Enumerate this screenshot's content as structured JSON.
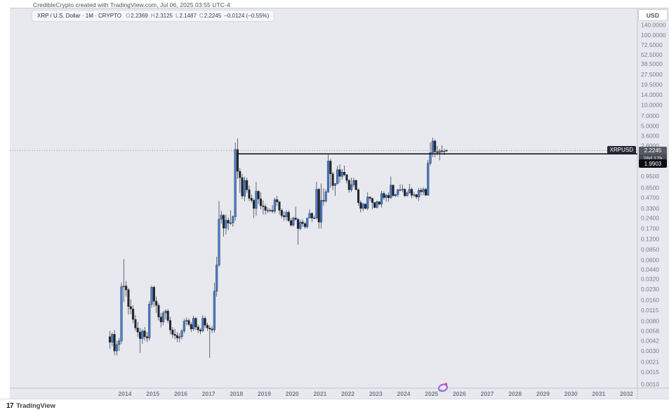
{
  "header": {
    "attribution": "CredibleCrypto created with TradingView.com, Jul 06, 2025 03:55 UTC-4"
  },
  "symbol_bar": {
    "title": "XRP / U.S. Dollar · 1M · CRYPTO",
    "ohlc": [
      {
        "k": "O",
        "v": "2.2369"
      },
      {
        "k": "H",
        "v": "2.3125"
      },
      {
        "k": "L",
        "v": "2.1487"
      },
      {
        "k": "C",
        "v": "2.2245"
      }
    ],
    "change": "−0.0124 (−0.55%)"
  },
  "axis": {
    "currency_button": "USD"
  },
  "badges": {
    "symbol_label": "XRPUSD",
    "last_price": "2.2245",
    "countdown": "26d 17h",
    "ray_price": "1.9903"
  },
  "footer": {
    "logo_mark": "17",
    "brand": "TradingView"
  },
  "colors": {
    "up_candle": "#4a80d1",
    "down_candle": "#22252e",
    "wick": "#42454f",
    "ray_line": "#0a0a0a",
    "last_price_line": "#8c8f99",
    "axis_text": "#7a7d87",
    "background": "#e7e9ef"
  },
  "chart_data": {
    "type": "candlestick",
    "symbol": "XRPUSD",
    "interval": "1M",
    "scale": "logarithmic",
    "grid": false,
    "title": "XRP / U.S. Dollar monthly candles",
    "last_price": 2.2245,
    "price_axis_ticks": [
      "140.0000",
      "100.0000",
      "72.5000",
      "52.5000",
      "38.5000",
      "27.5000",
      "19.5000",
      "14.0000",
      "10.0000",
      "7.0000",
      "5.0000",
      "3.6000",
      "2.6000",
      "1.3500",
      "0.9500",
      "0.6500",
      "0.4700",
      "0.3300",
      "0.2400",
      "0.1700",
      "0.1200",
      "0.0850",
      "0.0600",
      "0.0440",
      "0.0320",
      "0.0230",
      "0.0160",
      "0.0115",
      "0.0080",
      "0.0058",
      "0.0042",
      "0.0030",
      "0.0021",
      "0.0015",
      "0.0010"
    ],
    "time_axis_ticks": [
      2014,
      2015,
      2016,
      2017,
      2018,
      2019,
      2020,
      2021,
      2022,
      2023,
      2024,
      2025,
      2026,
      2027,
      2028,
      2029,
      2030,
      2031,
      2032
    ],
    "horizontal_ray": {
      "price": 1.9903,
      "start": "2018-01"
    },
    "candles": [
      [
        "2013-06",
        0.0048,
        0.0058,
        0.0032,
        0.004
      ],
      [
        "2013-07",
        0.004,
        0.0055,
        0.0035,
        0.0052
      ],
      [
        "2013-08",
        0.0052,
        0.006,
        0.0026,
        0.003
      ],
      [
        "2013-09",
        0.003,
        0.0042,
        0.0026,
        0.0037
      ],
      [
        "2013-10",
        0.0037,
        0.0046,
        0.003,
        0.0042
      ],
      [
        "2013-11",
        0.0042,
        0.0285,
        0.0038,
        0.025
      ],
      [
        "2013-12",
        0.025,
        0.062,
        0.015,
        0.0255
      ],
      [
        "2014-01",
        0.0255,
        0.03,
        0.018,
        0.0225
      ],
      [
        "2014-02",
        0.0225,
        0.024,
        0.01,
        0.013
      ],
      [
        "2014-03",
        0.013,
        0.0165,
        0.01,
        0.012
      ],
      [
        "2014-04",
        0.012,
        0.0135,
        0.0075,
        0.0085
      ],
      [
        "2014-05",
        0.0085,
        0.0098,
        0.0058,
        0.0064
      ],
      [
        "2014-06",
        0.0064,
        0.0078,
        0.0048,
        0.0056
      ],
      [
        "2014-07",
        0.0056,
        0.0064,
        0.0028,
        0.0045
      ],
      [
        "2014-08",
        0.0045,
        0.0062,
        0.0038,
        0.0058
      ],
      [
        "2014-09",
        0.0058,
        0.0066,
        0.0042,
        0.0048
      ],
      [
        "2014-10",
        0.0048,
        0.0056,
        0.004,
        0.0046
      ],
      [
        "2014-11",
        0.0046,
        0.0155,
        0.0042,
        0.014
      ],
      [
        "2014-12",
        0.014,
        0.026,
        0.0125,
        0.0245
      ],
      [
        "2015-01",
        0.0245,
        0.0258,
        0.0128,
        0.0155
      ],
      [
        "2015-02",
        0.0155,
        0.018,
        0.0105,
        0.0135
      ],
      [
        "2015-03",
        0.0135,
        0.0145,
        0.0082,
        0.0092
      ],
      [
        "2015-04",
        0.0092,
        0.0105,
        0.0065,
        0.0078
      ],
      [
        "2015-05",
        0.0078,
        0.0112,
        0.007,
        0.0105
      ],
      [
        "2015-06",
        0.0105,
        0.0118,
        0.0085,
        0.0112
      ],
      [
        "2015-07",
        0.0112,
        0.012,
        0.0075,
        0.0082
      ],
      [
        "2015-08",
        0.0082,
        0.0092,
        0.0052,
        0.006
      ],
      [
        "2015-09",
        0.006,
        0.0066,
        0.0046,
        0.0052
      ],
      [
        "2015-10",
        0.0052,
        0.0062,
        0.0044,
        0.005
      ],
      [
        "2015-11",
        0.005,
        0.0056,
        0.004,
        0.0046
      ],
      [
        "2015-12",
        0.0046,
        0.0054,
        0.004,
        0.0048
      ],
      [
        "2016-01",
        0.0048,
        0.0062,
        0.0044,
        0.0058
      ],
      [
        "2016-02",
        0.0058,
        0.0086,
        0.0054,
        0.008
      ],
      [
        "2016-03",
        0.008,
        0.009,
        0.007,
        0.0082
      ],
      [
        "2016-04",
        0.0082,
        0.0088,
        0.0068,
        0.0072
      ],
      [
        "2016-05",
        0.0072,
        0.0078,
        0.0056,
        0.0062
      ],
      [
        "2016-06",
        0.0062,
        0.0096,
        0.0058,
        0.0088
      ],
      [
        "2016-07",
        0.0088,
        0.0092,
        0.006,
        0.0066
      ],
      [
        "2016-08",
        0.0066,
        0.0072,
        0.0054,
        0.006
      ],
      [
        "2016-09",
        0.006,
        0.0064,
        0.0052,
        0.0058
      ],
      [
        "2016-10",
        0.0058,
        0.0098,
        0.0056,
        0.0088
      ],
      [
        "2016-11",
        0.0088,
        0.0094,
        0.0064,
        0.007
      ],
      [
        "2016-12",
        0.007,
        0.0076,
        0.0058,
        0.0064
      ],
      [
        "2017-01",
        0.0064,
        0.007,
        0.0024,
        0.0062
      ],
      [
        "2017-02",
        0.0062,
        0.0068,
        0.0054,
        0.006
      ],
      [
        "2017-03",
        0.006,
        0.0285,
        0.0055,
        0.0215
      ],
      [
        "2017-04",
        0.0215,
        0.067,
        0.018,
        0.051
      ],
      [
        "2017-05",
        0.051,
        0.42,
        0.048,
        0.232
      ],
      [
        "2017-06",
        0.232,
        0.305,
        0.2,
        0.263
      ],
      [
        "2017-07",
        0.263,
        0.272,
        0.13,
        0.172
      ],
      [
        "2017-08",
        0.172,
        0.27,
        0.14,
        0.223
      ],
      [
        "2017-09",
        0.223,
        0.245,
        0.16,
        0.203
      ],
      [
        "2017-10",
        0.203,
        0.31,
        0.19,
        0.204
      ],
      [
        "2017-11",
        0.204,
        0.262,
        0.18,
        0.252
      ],
      [
        "2017-12",
        0.252,
        2.9,
        0.22,
        2.3
      ],
      [
        "2018-01",
        2.3,
        3.31,
        0.87,
        1.12
      ],
      [
        "2018-02",
        1.12,
        1.25,
        0.55,
        0.91
      ],
      [
        "2018-03",
        0.91,
        1.02,
        0.45,
        0.495
      ],
      [
        "2018-04",
        0.495,
        0.94,
        0.42,
        0.83
      ],
      [
        "2018-05",
        0.83,
        0.91,
        0.55,
        0.61
      ],
      [
        "2018-06",
        0.61,
        0.7,
        0.42,
        0.46
      ],
      [
        "2018-07",
        0.46,
        0.52,
        0.4,
        0.43
      ],
      [
        "2018-08",
        0.43,
        0.46,
        0.24,
        0.33
      ],
      [
        "2018-09",
        0.33,
        0.79,
        0.26,
        0.58
      ],
      [
        "2018-10",
        0.58,
        0.6,
        0.38,
        0.45
      ],
      [
        "2018-11",
        0.45,
        0.56,
        0.32,
        0.36
      ],
      [
        "2018-12",
        0.36,
        0.43,
        0.27,
        0.35
      ],
      [
        "2019-01",
        0.35,
        0.38,
        0.27,
        0.31
      ],
      [
        "2019-02",
        0.31,
        0.34,
        0.28,
        0.31
      ],
      [
        "2019-03",
        0.31,
        0.33,
        0.29,
        0.31
      ],
      [
        "2019-04",
        0.31,
        0.37,
        0.28,
        0.3
      ],
      [
        "2019-05",
        0.3,
        0.47,
        0.28,
        0.44
      ],
      [
        "2019-06",
        0.44,
        0.5,
        0.36,
        0.41
      ],
      [
        "2019-07",
        0.41,
        0.42,
        0.27,
        0.31
      ],
      [
        "2019-08",
        0.31,
        0.33,
        0.24,
        0.26
      ],
      [
        "2019-09",
        0.26,
        0.3,
        0.22,
        0.25
      ],
      [
        "2019-10",
        0.25,
        0.31,
        0.22,
        0.29
      ],
      [
        "2019-11",
        0.29,
        0.31,
        0.21,
        0.22
      ],
      [
        "2019-12",
        0.22,
        0.24,
        0.18,
        0.19
      ],
      [
        "2020-01",
        0.19,
        0.25,
        0.18,
        0.24
      ],
      [
        "2020-02",
        0.24,
        0.35,
        0.22,
        0.23
      ],
      [
        "2020-03",
        0.23,
        0.24,
        0.1,
        0.17
      ],
      [
        "2020-04",
        0.17,
        0.23,
        0.16,
        0.21
      ],
      [
        "2020-05",
        0.21,
        0.23,
        0.18,
        0.2
      ],
      [
        "2020-06",
        0.2,
        0.21,
        0.17,
        0.18
      ],
      [
        "2020-07",
        0.18,
        0.24,
        0.17,
        0.24
      ],
      [
        "2020-08",
        0.24,
        0.32,
        0.24,
        0.28
      ],
      [
        "2020-09",
        0.28,
        0.29,
        0.21,
        0.24
      ],
      [
        "2020-10",
        0.24,
        0.26,
        0.23,
        0.24
      ],
      [
        "2020-11",
        0.24,
        0.79,
        0.23,
        0.62
      ],
      [
        "2020-12",
        0.62,
        0.65,
        0.17,
        0.21
      ],
      [
        "2021-01",
        0.21,
        0.75,
        0.17,
        0.43
      ],
      [
        "2021-02",
        0.43,
        0.64,
        0.36,
        0.42
      ],
      [
        "2021-03",
        0.42,
        0.62,
        0.4,
        0.57
      ],
      [
        "2021-04",
        0.57,
        1.96,
        0.55,
        1.57
      ],
      [
        "2021-05",
        1.57,
        1.7,
        0.65,
        1.03
      ],
      [
        "2021-06",
        1.03,
        1.1,
        0.6,
        0.7
      ],
      [
        "2021-07",
        0.7,
        0.76,
        0.5,
        0.75
      ],
      [
        "2021-08",
        0.75,
        1.34,
        0.72,
        1.18
      ],
      [
        "2021-09",
        1.18,
        1.41,
        0.77,
        0.95
      ],
      [
        "2021-10",
        0.95,
        1.2,
        0.85,
        1.09
      ],
      [
        "2021-11",
        1.09,
        1.35,
        0.95,
        1.0
      ],
      [
        "2021-12",
        1.0,
        1.02,
        0.75,
        0.83
      ],
      [
        "2022-01",
        0.83,
        0.87,
        0.55,
        0.61
      ],
      [
        "2022-02",
        0.61,
        0.91,
        0.57,
        0.72
      ],
      [
        "2022-03",
        0.72,
        0.91,
        0.67,
        0.83
      ],
      [
        "2022-04",
        0.83,
        0.85,
        0.6,
        0.61
      ],
      [
        "2022-05",
        0.61,
        0.64,
        0.36,
        0.4
      ],
      [
        "2022-06",
        0.4,
        0.43,
        0.29,
        0.33
      ],
      [
        "2022-07",
        0.33,
        0.4,
        0.3,
        0.38
      ],
      [
        "2022-08",
        0.38,
        0.39,
        0.32,
        0.33
      ],
      [
        "2022-09",
        0.33,
        0.56,
        0.31,
        0.48
      ],
      [
        "2022-10",
        0.48,
        0.49,
        0.42,
        0.46
      ],
      [
        "2022-11",
        0.46,
        0.47,
        0.32,
        0.4
      ],
      [
        "2022-12",
        0.4,
        0.41,
        0.33,
        0.34
      ],
      [
        "2023-01",
        0.34,
        0.43,
        0.33,
        0.41
      ],
      [
        "2023-02",
        0.41,
        0.42,
        0.36,
        0.38
      ],
      [
        "2023-03",
        0.38,
        0.59,
        0.34,
        0.54
      ],
      [
        "2023-04",
        0.54,
        0.58,
        0.44,
        0.47
      ],
      [
        "2023-05",
        0.47,
        0.53,
        0.41,
        0.51
      ],
      [
        "2023-06",
        0.51,
        0.56,
        0.41,
        0.47
      ],
      [
        "2023-07",
        0.47,
        0.94,
        0.45,
        0.71
      ],
      [
        "2023-08",
        0.71,
        0.72,
        0.49,
        0.5
      ],
      [
        "2023-09",
        0.5,
        0.54,
        0.48,
        0.52
      ],
      [
        "2023-10",
        0.52,
        0.63,
        0.48,
        0.61
      ],
      [
        "2023-11",
        0.61,
        0.73,
        0.58,
        0.61
      ],
      [
        "2023-12",
        0.61,
        0.72,
        0.56,
        0.62
      ],
      [
        "2024-01",
        0.62,
        0.64,
        0.48,
        0.5
      ],
      [
        "2024-02",
        0.5,
        0.58,
        0.49,
        0.55
      ],
      [
        "2024-03",
        0.55,
        0.74,
        0.54,
        0.62
      ],
      [
        "2024-04",
        0.62,
        0.66,
        0.46,
        0.51
      ],
      [
        "2024-05",
        0.51,
        0.57,
        0.48,
        0.52
      ],
      [
        "2024-06",
        0.52,
        0.53,
        0.45,
        0.48
      ],
      [
        "2024-07",
        0.48,
        0.65,
        0.42,
        0.6
      ],
      [
        "2024-08",
        0.6,
        0.65,
        0.5,
        0.57
      ],
      [
        "2024-09",
        0.57,
        0.66,
        0.51,
        0.62
      ],
      [
        "2024-10",
        0.62,
        0.65,
        0.5,
        0.51
      ],
      [
        "2024-11",
        0.51,
        1.63,
        0.5,
        1.46
      ],
      [
        "2024-12",
        1.46,
        2.9,
        1.36,
        2.08
      ],
      [
        "2025-01",
        2.08,
        3.4,
        1.79,
        3.04
      ],
      [
        "2025-02",
        3.04,
        3.21,
        1.77,
        2.14
      ],
      [
        "2025-03",
        2.14,
        2.6,
        1.9,
        2.08
      ],
      [
        "2025-04",
        2.08,
        2.35,
        1.61,
        2.2
      ],
      [
        "2025-05",
        2.2,
        2.65,
        2.06,
        2.17
      ],
      [
        "2025-06",
        2.17,
        2.34,
        1.91,
        2.19
      ],
      [
        "2025-07",
        2.2369,
        2.3125,
        2.1487,
        2.2245
      ]
    ]
  }
}
